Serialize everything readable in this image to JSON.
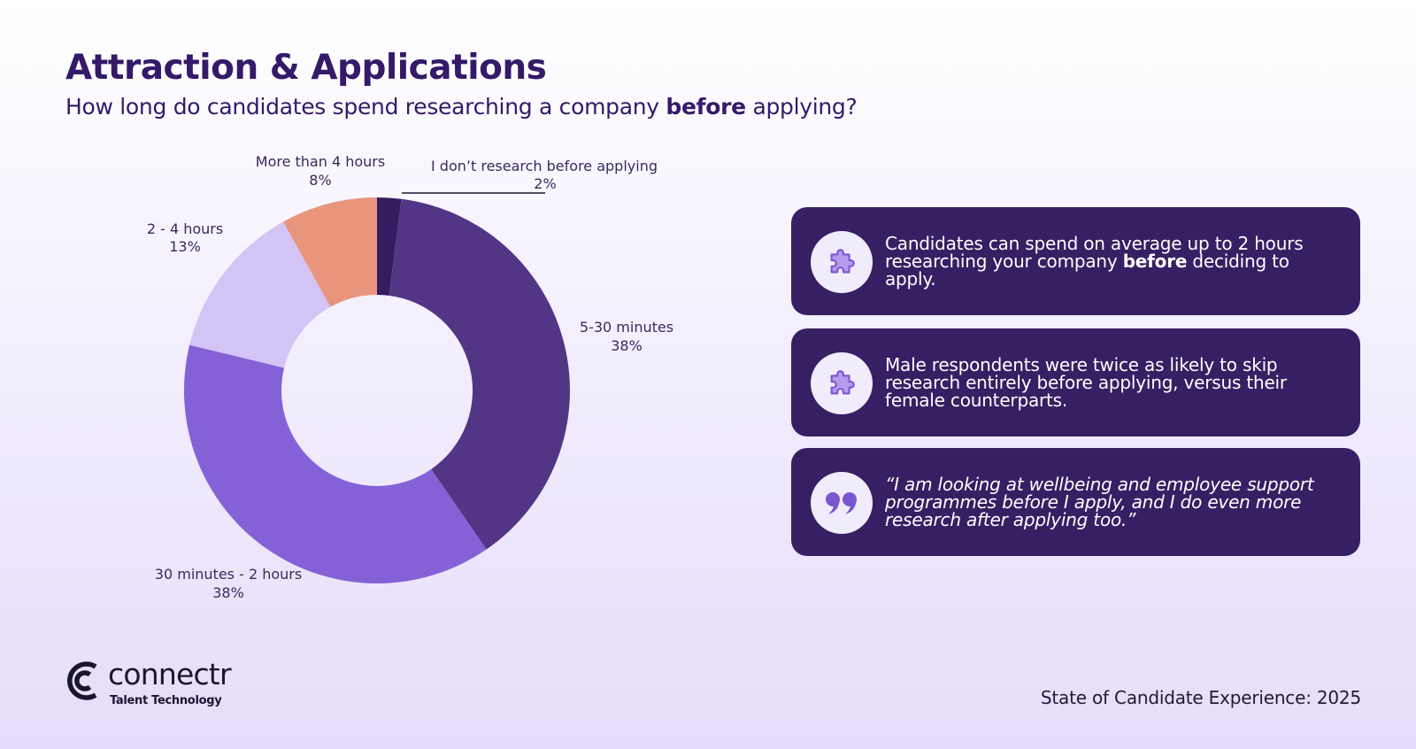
{
  "header": {
    "title": "Attraction & Applications",
    "subtitle_before": "How long do candidates spend researching a company ",
    "subtitle_bold": "before",
    "subtitle_after": " applying?"
  },
  "chart_data": {
    "type": "pie",
    "variant": "donut",
    "title": "",
    "start": "top",
    "direction": "clockwise",
    "slices": [
      {
        "label": "I don’t research before applying",
        "value": 2,
        "value_label": "2%",
        "color": "#341c60"
      },
      {
        "label": "5-30 minutes",
        "value": 38,
        "value_label": "38%",
        "color": "#533585"
      },
      {
        "label": "30 minutes - 2 hours",
        "value": 38,
        "value_label": "38%",
        "color": "#8561d7"
      },
      {
        "label": "2 - 4 hours",
        "value": 13,
        "value_label": "13%",
        "color": "#d2c4f4"
      },
      {
        "label": "More than 4 hours",
        "value": 8,
        "value_label": "8%",
        "color": "#e9957e"
      }
    ]
  },
  "cards": [
    {
      "icon": "puzzle-icon",
      "text_before": "Candidates can spend on average up to 2 hours researching your company ",
      "text_bold": "before",
      "text_after": " deciding to apply."
    },
    {
      "icon": "puzzle-icon",
      "text": "Male respondents were twice as likely to skip research entirely before applying, versus their female counterparts."
    },
    {
      "icon": "quote-icon",
      "text": "“I am looking at wellbeing and employee support programmes before I apply, and I do even more research after applying too.”"
    }
  ],
  "brand": {
    "name": "connectr",
    "tagline": "Talent Technology"
  },
  "footer": {
    "report": "State of Candidate Experience: 2025"
  }
}
